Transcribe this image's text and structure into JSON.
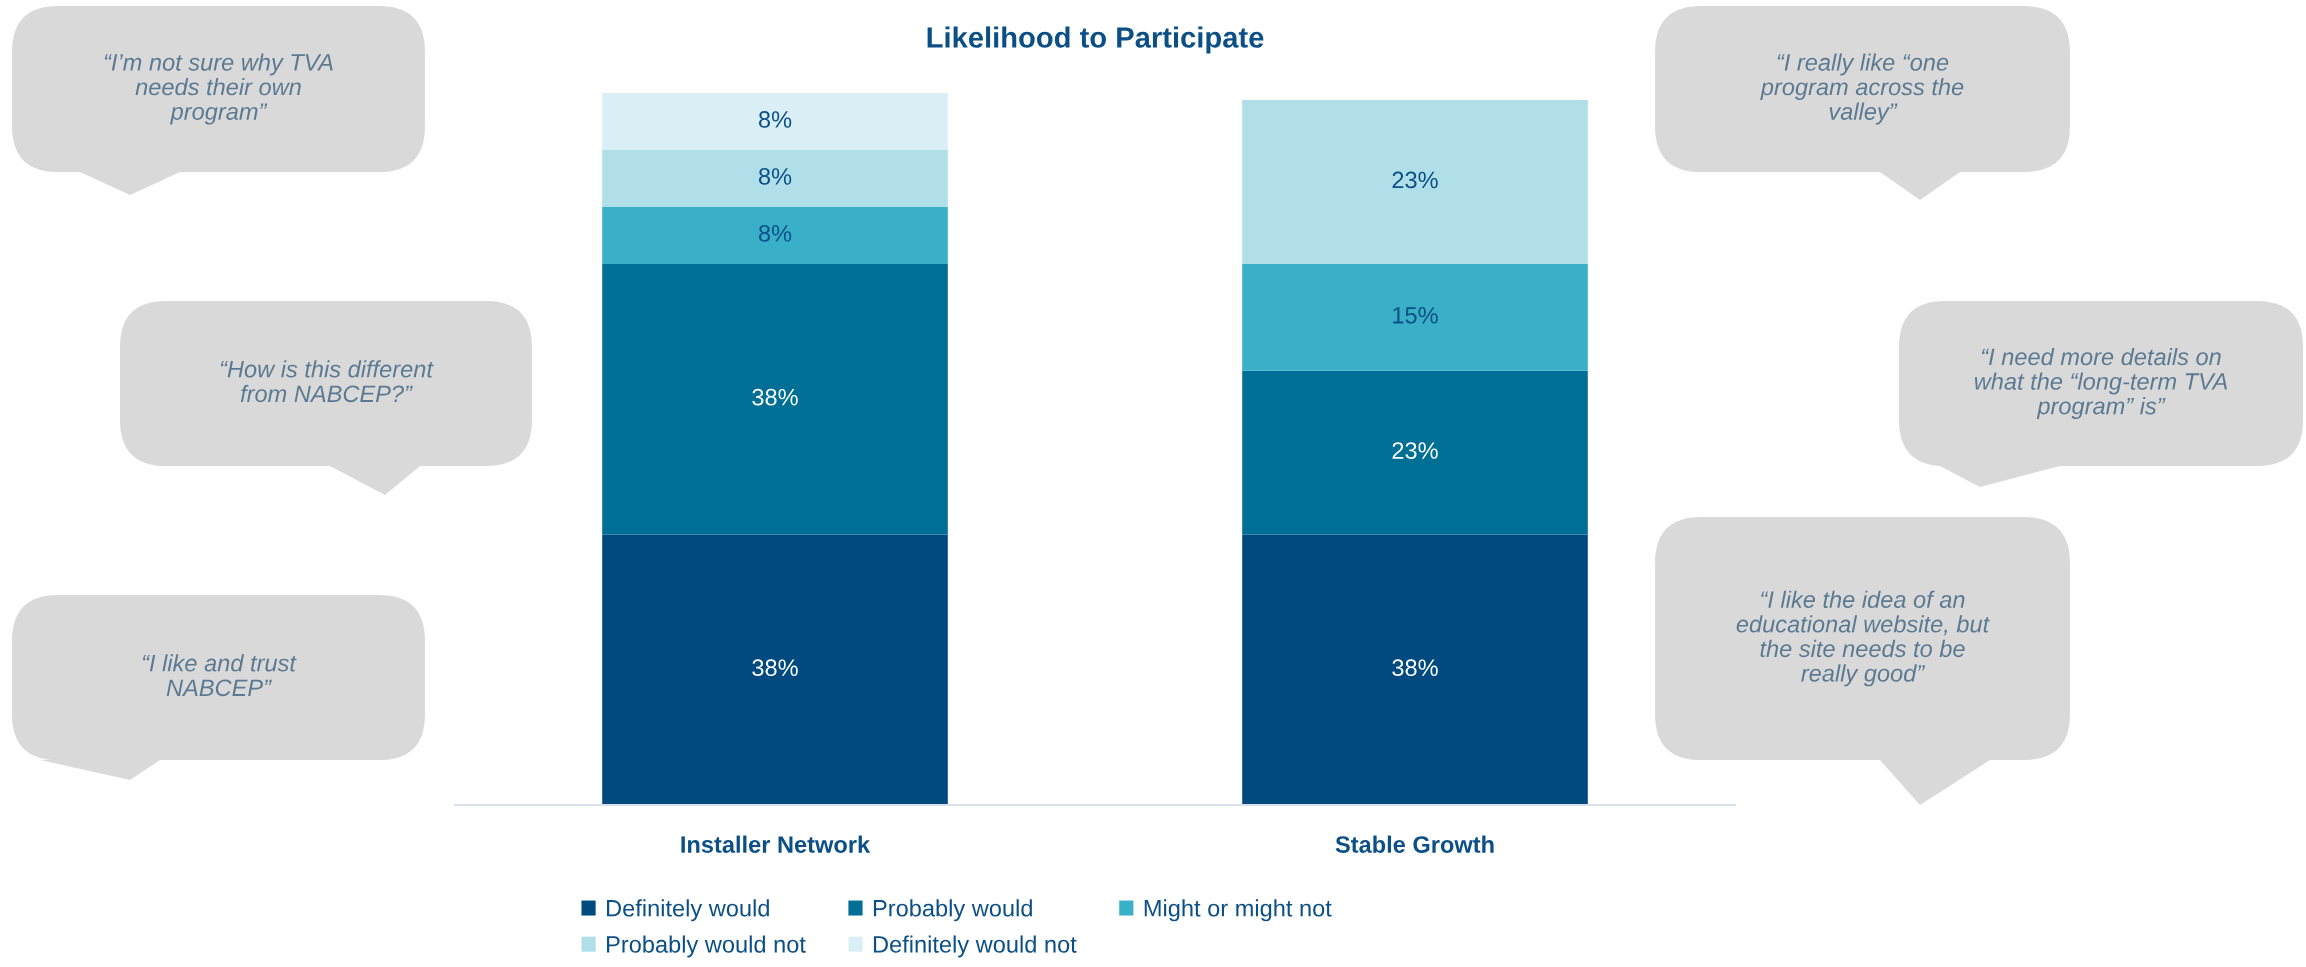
{
  "chart_data": {
    "type": "bar",
    "title": "Likelihood to Participate",
    "stacked": true,
    "legend": "bottom",
    "categories": [
      "Installer Network",
      "Stable Growth"
    ],
    "series": [
      {
        "name": "Definitely would",
        "color": "#004a80",
        "values": [
          38,
          38
        ],
        "value_labels": [
          "38%",
          "38%"
        ]
      },
      {
        "name": "Probably would",
        "color": "#006f96",
        "values": [
          38,
          23
        ],
        "value_labels": [
          "38%",
          "23%"
        ]
      },
      {
        "name": "Might or might not",
        "color": "#3ab0c8",
        "values": [
          8,
          15
        ],
        "value_labels": [
          "8%",
          "15%"
        ]
      },
      {
        "name": "Probably would not",
        "color": "#b0dfea",
        "values": [
          8,
          23
        ],
        "value_labels": [
          "8%",
          "23%"
        ]
      },
      {
        "name": "Definitely would not",
        "color": "#d9eff5",
        "values": [
          8,
          0
        ],
        "value_labels": [
          "8%",
          null
        ]
      }
    ],
    "annotations": [
      "“I’m not sure why TVA\nneeds their own\nprogram”",
      "“How is this different\nfrom NABCEP?”",
      "“I like and trust\nNABCEP”",
      "“I really like “one\nprogram across the\nvalley”",
      "“I need more details on\nwhat the “long-term TVA\nprogram” is”",
      "“I like the idea of an\neducational website, but\nthe site needs to be\nreally good”"
    ]
  }
}
